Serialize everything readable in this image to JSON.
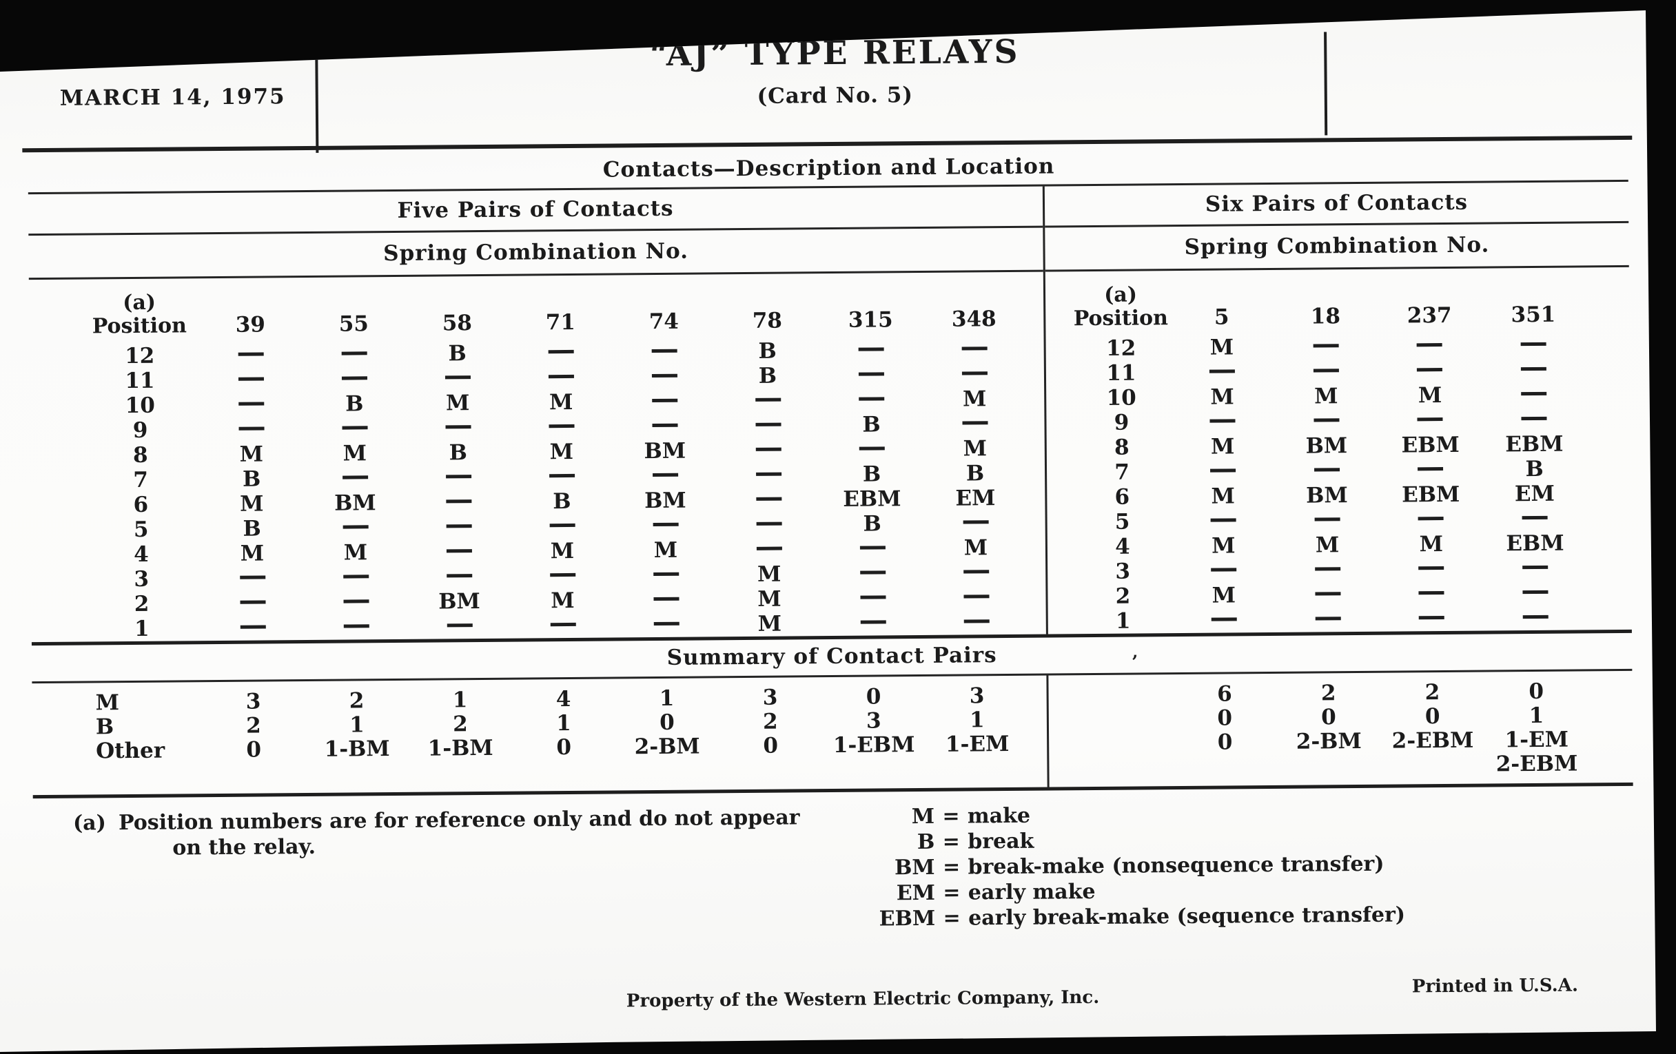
{
  "header": {
    "date": "MARCH 14, 1975",
    "title": "“AJ” TYPE RELAYS",
    "subtitle": "(Card No. 5)"
  },
  "section_title": "Contacts—Description and Location",
  "summary_title": "Summary of Contact Pairs",
  "stray_mark": "’",
  "left_table": {
    "group_title": "Five Pairs of Contacts",
    "subgroup_title": "Spring Combination No.",
    "position_note": "(a)",
    "position_label": "Position",
    "columns": [
      "39",
      "55",
      "58",
      "71",
      "74",
      "78",
      "315",
      "348"
    ],
    "rows": [
      {
        "position": "12",
        "values": [
          "—",
          "—",
          "B",
          "—",
          "—",
          "B",
          "—",
          "—"
        ]
      },
      {
        "position": "11",
        "values": [
          "—",
          "—",
          "—",
          "—",
          "—",
          "B",
          "—",
          "—"
        ]
      },
      {
        "position": "10",
        "values": [
          "—",
          "B",
          "M",
          "M",
          "—",
          "—",
          "—",
          "M"
        ]
      },
      {
        "position": "9",
        "values": [
          "—",
          "—",
          "—",
          "—",
          "—",
          "—",
          "B",
          "—"
        ]
      },
      {
        "position": "8",
        "values": [
          "M",
          "M",
          "B",
          "M",
          "BM",
          "—",
          "—",
          "M"
        ]
      },
      {
        "position": "7",
        "values": [
          "B",
          "—",
          "—",
          "—",
          "—",
          "—",
          "B",
          "B"
        ]
      },
      {
        "position": "6",
        "values": [
          "M",
          "BM",
          "—",
          "B",
          "BM",
          "—",
          "EBM",
          "EM"
        ]
      },
      {
        "position": "5",
        "values": [
          "B",
          "—",
          "—",
          "—",
          "—",
          "—",
          "B",
          "—"
        ]
      },
      {
        "position": "4",
        "values": [
          "M",
          "M",
          "—",
          "M",
          "M",
          "—",
          "—",
          "M"
        ]
      },
      {
        "position": "3",
        "values": [
          "—",
          "—",
          "—",
          "—",
          "—",
          "M",
          "—",
          "—"
        ]
      },
      {
        "position": "2",
        "values": [
          "—",
          "—",
          "BM",
          "M",
          "—",
          "M",
          "—",
          "—"
        ]
      },
      {
        "position": "1",
        "values": [
          "—",
          "—",
          "—",
          "—",
          "—",
          "M",
          "—",
          "—"
        ]
      }
    ],
    "summary_rows": [
      {
        "label": "M",
        "values": [
          "3",
          "2",
          "1",
          "4",
          "1",
          "3",
          "0",
          "3"
        ]
      },
      {
        "label": "B",
        "values": [
          "2",
          "1",
          "2",
          "1",
          "0",
          "2",
          "3",
          "1"
        ]
      },
      {
        "label": "Other",
        "values": [
          "0",
          "1-BM",
          "1-BM",
          "0",
          "2-BM",
          "0",
          "1-EBM",
          "1-EM"
        ]
      }
    ]
  },
  "right_table": {
    "group_title": "Six Pairs of Contacts",
    "subgroup_title": "Spring Combination No.",
    "position_note": "(a)",
    "position_label": "Position",
    "columns": [
      "5",
      "18",
      "237",
      "351"
    ],
    "rows": [
      {
        "position": "12",
        "values": [
          "M",
          "—",
          "—",
          "—"
        ]
      },
      {
        "position": "11",
        "values": [
          "—",
          "—",
          "—",
          "—"
        ]
      },
      {
        "position": "10",
        "values": [
          "M",
          "M",
          "M",
          "—"
        ]
      },
      {
        "position": "9",
        "values": [
          "—",
          "—",
          "—",
          "—"
        ]
      },
      {
        "position": "8",
        "values": [
          "M",
          "BM",
          "EBM",
          "EBM"
        ]
      },
      {
        "position": "7",
        "values": [
          "—",
          "—",
          "—",
          "B"
        ]
      },
      {
        "position": "6",
        "values": [
          "M",
          "BM",
          "EBM",
          "EM"
        ]
      },
      {
        "position": "5",
        "values": [
          "—",
          "—",
          "—",
          "—"
        ]
      },
      {
        "position": "4",
        "values": [
          "M",
          "M",
          "M",
          "EBM"
        ]
      },
      {
        "position": "3",
        "values": [
          "—",
          "—",
          "—",
          "—"
        ]
      },
      {
        "position": "2",
        "values": [
          "M",
          "—",
          "—",
          "—"
        ]
      },
      {
        "position": "1",
        "values": [
          "—",
          "—",
          "—",
          "—"
        ]
      }
    ],
    "summary_rows": [
      {
        "label": "",
        "values": [
          "6",
          "2",
          "2",
          "0"
        ]
      },
      {
        "label": "",
        "values": [
          "0",
          "0",
          "0",
          "1"
        ]
      },
      {
        "label": "",
        "values": [
          "0",
          "2-BM",
          "2-EBM",
          "1-EM\n2-EBM"
        ]
      }
    ]
  },
  "footnote": {
    "marker": "(a)",
    "line1": "Position numbers are for reference only and do not appear",
    "line2": "on the relay."
  },
  "legend": [
    {
      "abbr": "M",
      "eq": "=",
      "def": "make"
    },
    {
      "abbr": "B",
      "eq": "=",
      "def": "break"
    },
    {
      "abbr": "BM",
      "eq": "=",
      "def": "break-make (nonsequence transfer)"
    },
    {
      "abbr": "EM",
      "eq": "=",
      "def": "early make"
    },
    {
      "abbr": "EBM",
      "eq": "=",
      "def": "early break-make (sequence transfer)"
    }
  ],
  "footer": {
    "left": "Property of the Western Electric Company, Inc.",
    "right": "Printed in U.S.A."
  }
}
